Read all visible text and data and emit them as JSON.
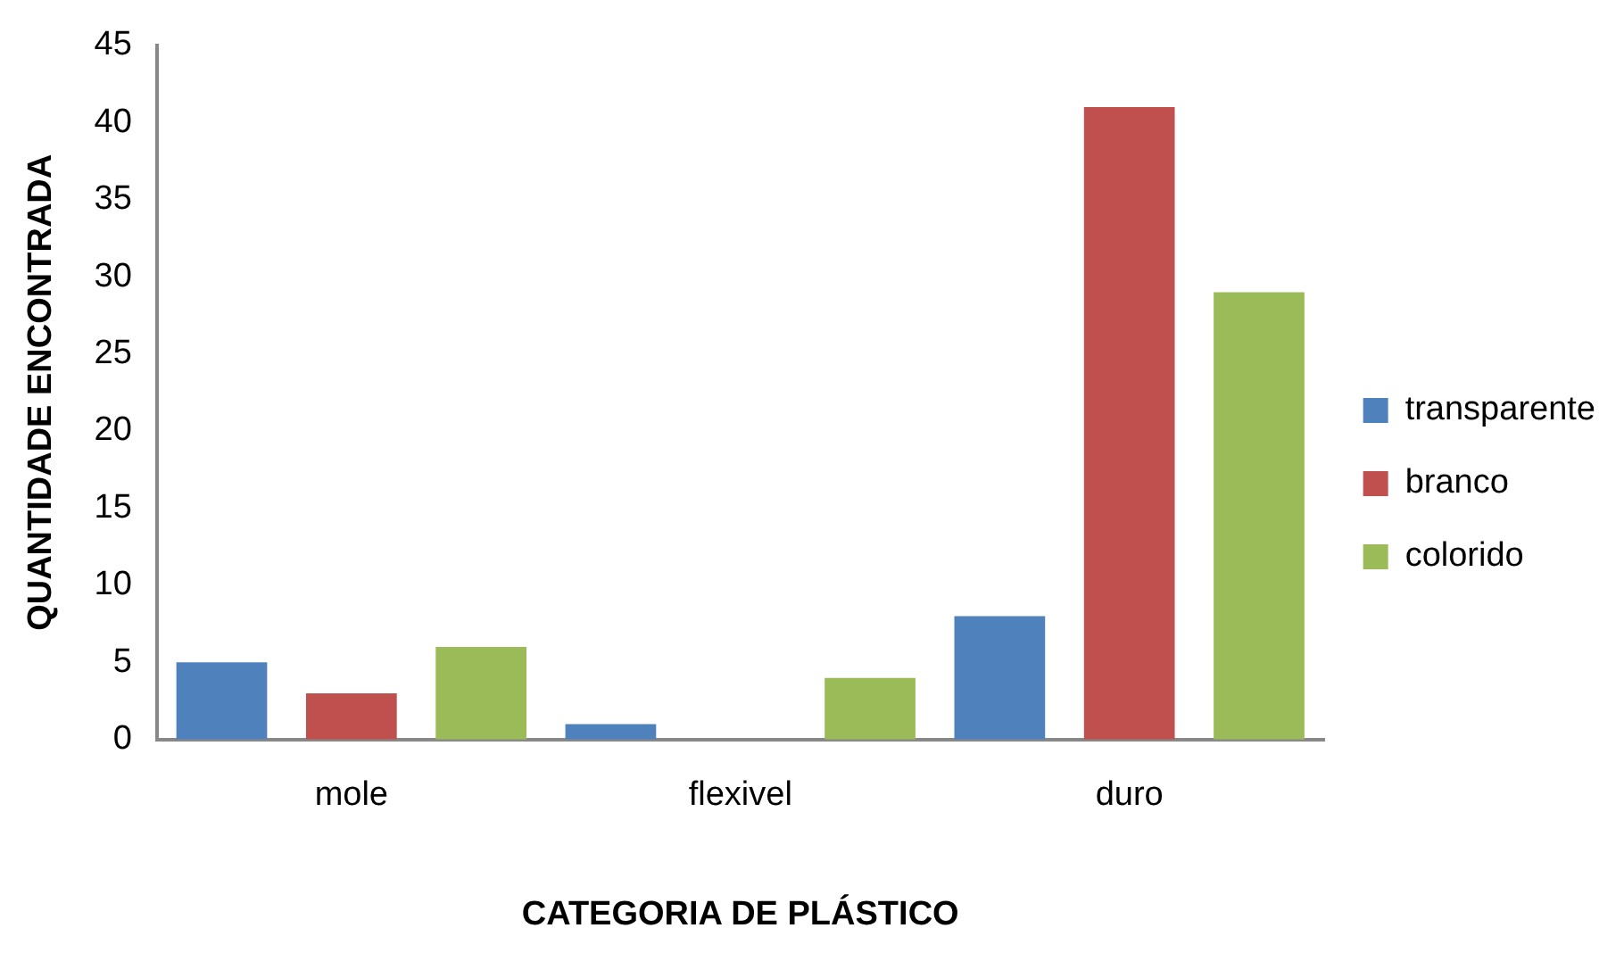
{
  "chart_data": {
    "type": "bar",
    "xlabel": "CATEGORIA DE PLÁSTICO",
    "ylabel": "QUANTIDADE ENCONTRADA",
    "categories": [
      "mole",
      "flexivel",
      "duro"
    ],
    "series": [
      {
        "name": "transparente",
        "color": "#4f81bd",
        "values": [
          5,
          1,
          8
        ]
      },
      {
        "name": "branco",
        "color": "#c0504d",
        "values": [
          3,
          0,
          41
        ]
      },
      {
        "name": "colorido",
        "color": "#9bbb59",
        "values": [
          6,
          4,
          29
        ]
      }
    ],
    "ylim": [
      0,
      45
    ],
    "yticks": [
      0,
      5,
      10,
      15,
      20,
      25,
      30,
      35,
      40,
      45
    ],
    "grid": false,
    "legend": "right"
  }
}
